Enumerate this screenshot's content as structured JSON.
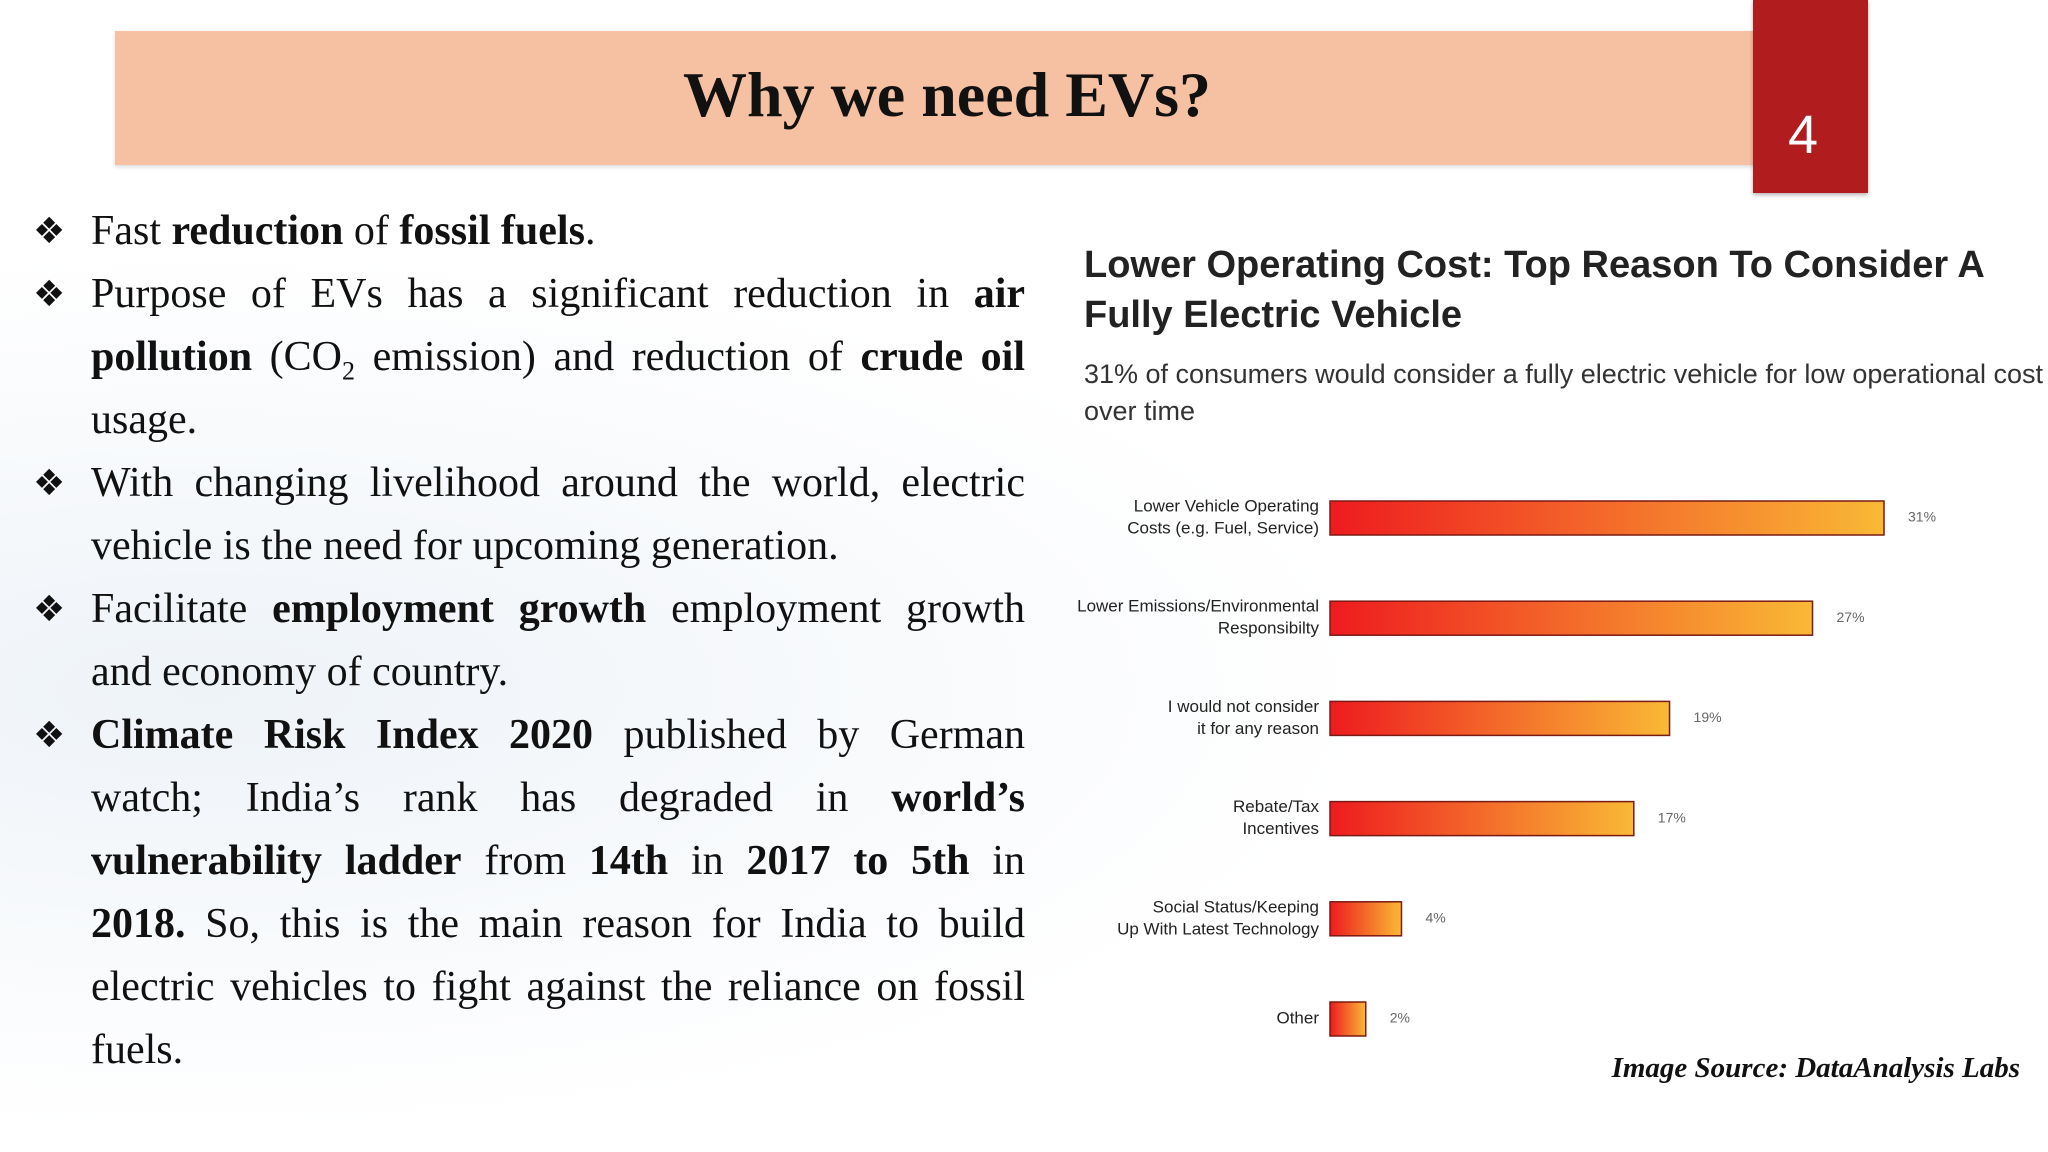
{
  "header": {
    "title": "Why we need EVs?",
    "page_number": "4"
  },
  "bullets": [
    {
      "segments": [
        {
          "text": "Fast "
        },
        {
          "text": "reduction",
          "bold": true
        },
        {
          "text": " of "
        },
        {
          "text": "fossil fuels",
          "bold": true
        },
        {
          "text": "."
        }
      ]
    },
    {
      "segments": [
        {
          "text": "Purpose of EVs has a significant reduction in "
        },
        {
          "text": "air pollution",
          "bold": true
        },
        {
          "text": " (CO"
        },
        {
          "text": "2",
          "sub": true
        },
        {
          "text": " emission) and reduction of "
        },
        {
          "text": "crude oil",
          "bold": true
        },
        {
          "text": " usage."
        }
      ]
    },
    {
      "segments": [
        {
          "text": "With changing livelihood around the world, electric vehicle is the need for upcoming generation."
        }
      ]
    },
    {
      "segments": [
        {
          "text": "Facilitate "
        },
        {
          "text": "employment growth",
          "bold": true
        },
        {
          "text": " employment growth and economy of country."
        }
      ]
    },
    {
      "segments": [
        {
          "text": "Climate Risk Index 2020",
          "bold": true
        },
        {
          "text": " published by German watch; India’s rank has degraded in "
        },
        {
          "text": "world’s vulnerability ladder",
          "bold": true
        },
        {
          "text": " from "
        },
        {
          "text": "14th",
          "bold": true
        },
        {
          "text": " in "
        },
        {
          "text": "2017 to 5th",
          "bold": true
        },
        {
          "text": " in "
        },
        {
          "text": "2018.",
          "bold": true
        },
        {
          "text": " So, this is the main reason for India to build electric vehicles to fight against the reliance on fossil fuels."
        }
      ]
    }
  ],
  "chart_data": {
    "type": "bar",
    "orientation": "horizontal",
    "title": "Lower Operating Cost: Top Reason To Consider A Fully Electric Vehicle",
    "subtitle": "31% of consumers would consider a fully electric vehicle for low operational cost over time",
    "categories": [
      [
        "Lower Vehicle Operating",
        "Costs (e.g. Fuel, Service)"
      ],
      [
        "Lower Emissions/Environmental",
        "Responsibilty"
      ],
      [
        "I would not consider",
        "it for any reason"
      ],
      [
        "Rebate/Tax",
        "Incentives"
      ],
      [
        "Social Status/Keeping",
        "Up With Latest Technology"
      ],
      [
        "Other"
      ]
    ],
    "values": [
      31,
      27,
      19,
      17,
      4,
      2
    ],
    "value_labels": [
      "31%",
      "27%",
      "19%",
      "17%",
      "4%",
      "2%"
    ],
    "colors": [
      "#ee1b1f",
      "#f9b935"
    ]
  },
  "source": "Image Source: DataAnalysis Labs"
}
